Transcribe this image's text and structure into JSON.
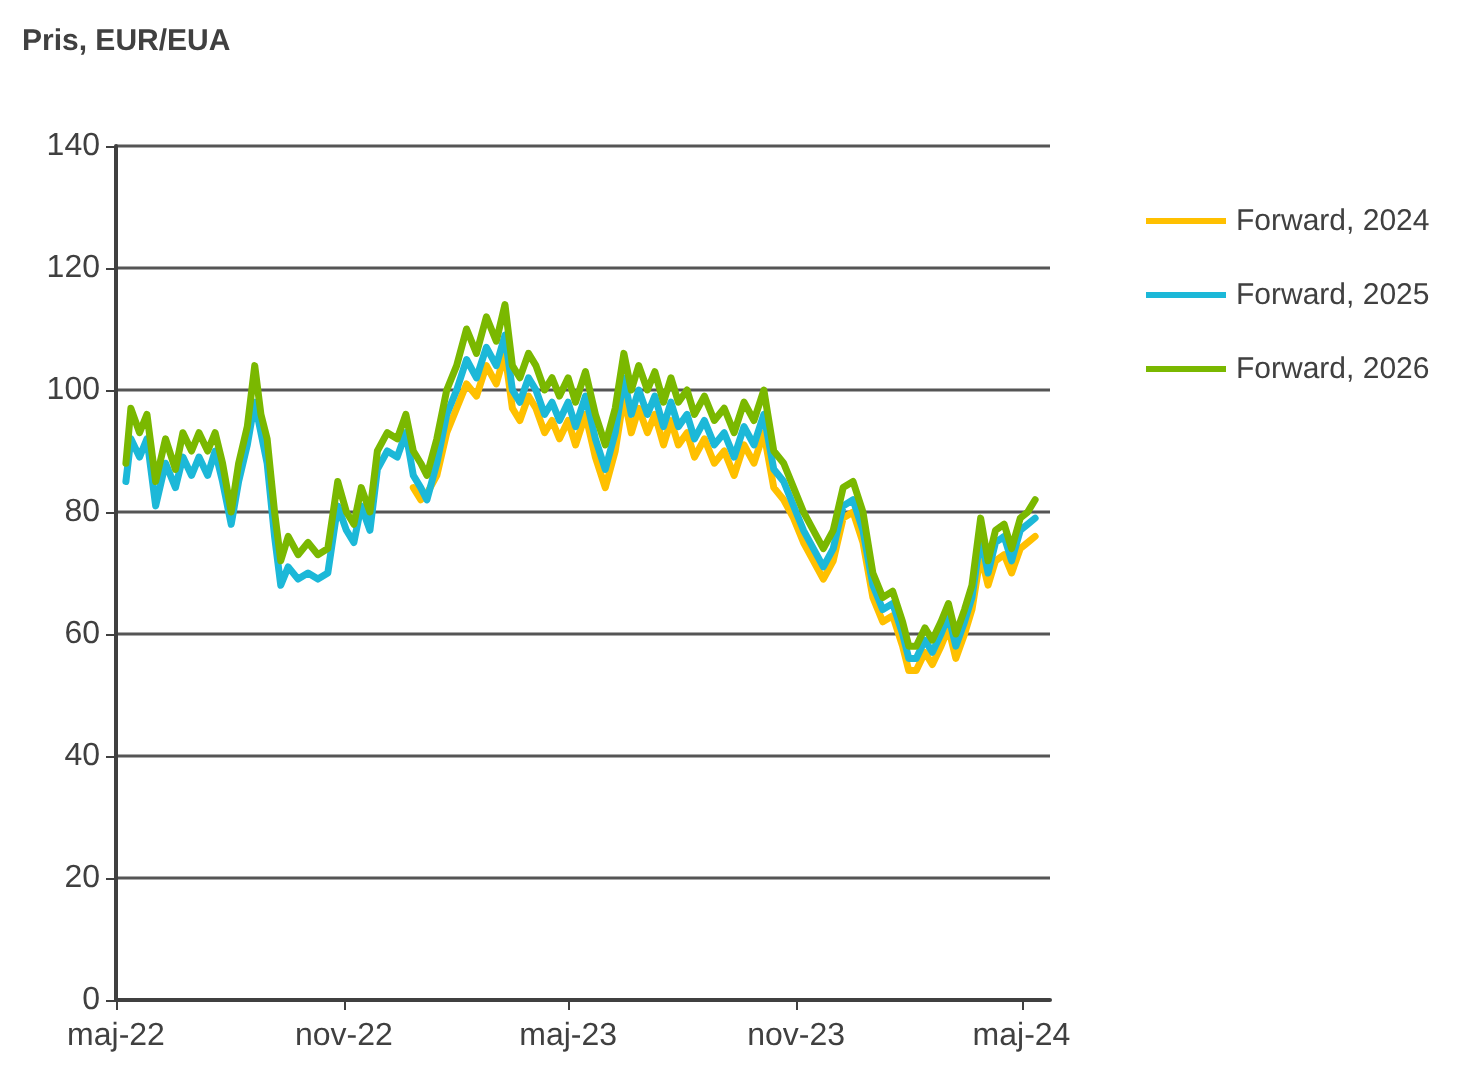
{
  "chart_data": {
    "type": "line",
    "title": "Pris, EUR/EUA",
    "x": [
      "2022-05-09",
      "2022-05-13",
      "2022-05-20",
      "2022-05-26",
      "2022-06-02",
      "2022-06-10",
      "2022-06-18",
      "2022-06-24",
      "2022-07-01",
      "2022-07-07",
      "2022-07-14",
      "2022-07-20",
      "2022-07-26",
      "2022-08-02",
      "2022-08-08",
      "2022-08-15",
      "2022-08-21",
      "2022-08-26",
      "2022-08-31",
      "2022-09-06",
      "2022-09-11",
      "2022-09-17",
      "2022-09-25",
      "2022-10-03",
      "2022-10-11",
      "2022-10-19",
      "2022-10-27",
      "2022-11-03",
      "2022-11-09",
      "2022-11-15",
      "2022-11-22",
      "2022-11-28",
      "2022-12-06",
      "2022-12-14",
      "2022-12-21",
      "2022-12-27",
      "2023-01-02",
      "2023-01-07",
      "2023-01-15",
      "2023-01-23",
      "2023-01-31",
      "2023-02-08",
      "2023-02-16",
      "2023-02-24",
      "2023-03-04",
      "2023-03-11",
      "2023-03-17",
      "2023-03-23",
      "2023-03-30",
      "2023-04-05",
      "2023-04-12",
      "2023-04-18",
      "2023-04-24",
      "2023-05-01",
      "2023-05-07",
      "2023-05-15",
      "2023-05-23",
      "2023-05-31",
      "2023-06-08",
      "2023-06-15",
      "2023-06-21",
      "2023-06-27",
      "2023-07-04",
      "2023-07-10",
      "2023-07-17",
      "2023-07-23",
      "2023-07-29",
      "2023-08-05",
      "2023-08-11",
      "2023-08-19",
      "2023-08-27",
      "2023-09-04",
      "2023-09-12",
      "2023-09-20",
      "2023-09-28",
      "2023-10-06",
      "2023-10-14",
      "2023-10-22",
      "2023-10-30",
      "2023-11-07",
      "2023-11-15",
      "2023-11-23",
      "2023-12-01",
      "2023-12-09",
      "2023-12-17",
      "2023-12-25",
      "2024-01-02",
      "2024-01-10",
      "2024-01-18",
      "2024-01-26",
      "2024-01-31",
      "2024-02-06",
      "2024-02-13",
      "2024-02-19",
      "2024-02-26",
      "2024-03-03",
      "2024-03-09",
      "2024-03-16",
      "2024-03-22",
      "2024-03-29",
      "2024-04-04",
      "2024-04-10",
      "2024-04-17",
      "2024-04-23",
      "2024-04-30",
      "2024-05-06",
      "2024-05-12"
    ],
    "series": [
      {
        "name": "Forward, 2024",
        "color": "#ffc000",
        "values": [
          null,
          null,
          null,
          null,
          null,
          null,
          null,
          null,
          null,
          null,
          null,
          null,
          null,
          null,
          null,
          null,
          null,
          null,
          null,
          null,
          null,
          null,
          null,
          null,
          null,
          null,
          null,
          null,
          null,
          null,
          null,
          null,
          null,
          null,
          null,
          84,
          82,
          83,
          86,
          93,
          97,
          101,
          99,
          104,
          101,
          106,
          97,
          95,
          99,
          97,
          93,
          95,
          92,
          95,
          91,
          96,
          89,
          84,
          90,
          99,
          93,
          97,
          93,
          96,
          91,
          95,
          91,
          93,
          89,
          92,
          88,
          90,
          86,
          91,
          88,
          93,
          84,
          82,
          79,
          75,
          72,
          69,
          72,
          79,
          80,
          75,
          66,
          62,
          63,
          58,
          54,
          54,
          57,
          55,
          58,
          61,
          56,
          60,
          64,
          73,
          68,
          72,
          73,
          70,
          74,
          75,
          76
        ]
      },
      {
        "name": "Forward, 2025",
        "color": "#1cb8d8",
        "values": [
          85,
          92,
          89,
          92,
          81,
          88,
          84,
          89,
          86,
          89,
          86,
          90,
          85,
          78,
          85,
          91,
          98,
          93,
          88,
          76,
          68,
          71,
          69,
          70,
          69,
          70,
          81,
          77,
          75,
          81,
          77,
          87,
          90,
          89,
          93,
          86,
          84,
          82,
          88,
          96,
          100,
          105,
          102,
          107,
          104,
          109,
          100,
          98,
          102,
          100,
          96,
          98,
          95,
          98,
          94,
          99,
          92,
          87,
          93,
          102,
          96,
          100,
          96,
          99,
          94,
          98,
          94,
          96,
          92,
          95,
          91,
          93,
          89,
          94,
          91,
          96,
          87,
          85,
          81,
          77,
          74,
          71,
          74,
          81,
          82,
          77,
          68,
          64,
          65,
          60,
          56,
          56,
          59,
          57,
          60,
          63,
          58,
          62,
          66,
          76,
          70,
          75,
          76,
          72,
          77,
          78,
          79
        ]
      },
      {
        "name": "Forward, 2026",
        "color": "#7ab800",
        "values": [
          88,
          97,
          93,
          96,
          85,
          92,
          87,
          93,
          90,
          93,
          90,
          93,
          88,
          80,
          88,
          94,
          104,
          96,
          92,
          80,
          72,
          76,
          73,
          75,
          73,
          74,
          85,
          80,
          78,
          84,
          80,
          90,
          93,
          92,
          96,
          90,
          88,
          86,
          92,
          100,
          104,
          110,
          106,
          112,
          108,
          114,
          104,
          102,
          106,
          104,
          100,
          102,
          99,
          102,
          98,
          103,
          96,
          91,
          97,
          106,
          100,
          104,
          100,
          103,
          98,
          102,
          98,
          100,
          96,
          99,
          95,
          97,
          93,
          98,
          95,
          100,
          90,
          88,
          84,
          80,
          77,
          74,
          77,
          84,
          85,
          80,
          70,
          66,
          67,
          62,
          58,
          58,
          61,
          59,
          62,
          65,
          60,
          64,
          68,
          79,
          72,
          77,
          78,
          74,
          79,
          80,
          82
        ]
      }
    ],
    "xlim": [
      "2022-05-01",
      "2024-05-24"
    ],
    "xticks": [
      {
        "value": "2022-05-01",
        "label": "maj-22"
      },
      {
        "value": "2022-11-01",
        "label": "nov-22"
      },
      {
        "value": "2023-05-01",
        "label": "maj-23"
      },
      {
        "value": "2023-11-01",
        "label": "nov-23"
      },
      {
        "value": "2024-05-01",
        "label": "maj-24"
      }
    ],
    "ylim": [
      0,
      140
    ],
    "yticks": [
      0,
      20,
      40,
      60,
      80,
      100,
      120,
      140
    ],
    "grid": "y",
    "legend": "right",
    "marker": "none",
    "line_style": "solid"
  }
}
